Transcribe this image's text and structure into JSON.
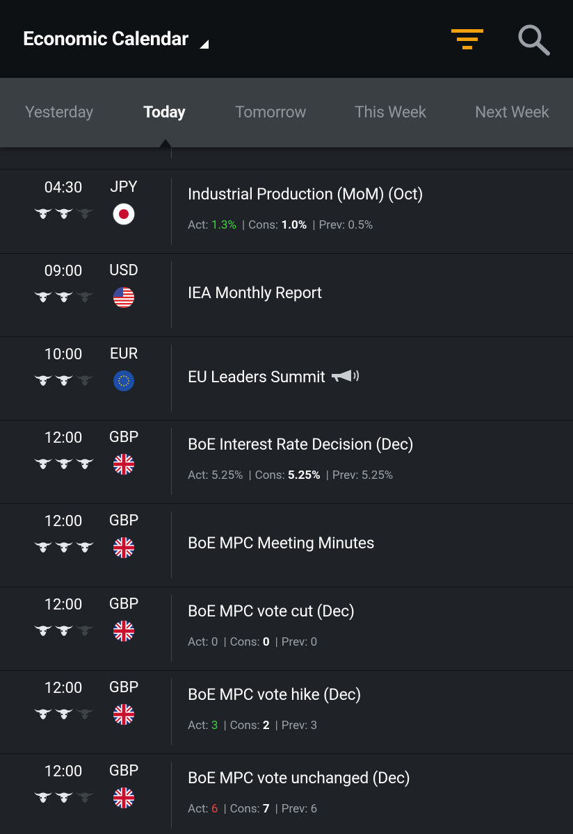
{
  "header": {
    "title": "Economic Calendar",
    "filter_icon": "filter-icon",
    "search_icon": "search-icon",
    "accent_color": "#f5a10d"
  },
  "tabs": [
    {
      "label": "Yesterday",
      "active": false
    },
    {
      "label": "Today",
      "active": true
    },
    {
      "label": "Tomorrow",
      "active": false
    },
    {
      "label": "This Week",
      "active": false
    },
    {
      "label": "Next Week",
      "active": false
    }
  ],
  "labels": {
    "act": "Act:",
    "cons": "Cons:",
    "prev": "Prev:"
  },
  "events": [
    {
      "time": "04:30",
      "currency": "JPY",
      "impact": 2,
      "flag": "japan-flag-icon",
      "name": "Industrial Production (MoM) (Oct)",
      "act": "1.3%",
      "act_color": "green",
      "cons": "1.0%",
      "prev": "0.5%"
    },
    {
      "time": "09:00",
      "currency": "USD",
      "impact": 2,
      "flag": "usa-flag-icon",
      "name": "IEA Monthly Report"
    },
    {
      "time": "10:00",
      "currency": "EUR",
      "impact": 2,
      "flag": "eu-flag-icon",
      "name": "EU Leaders Summit",
      "speech": true
    },
    {
      "time": "12:00",
      "currency": "GBP",
      "impact": 3,
      "flag": "uk-flag-icon",
      "name": "BoE Interest Rate Decision (Dec)",
      "act": "5.25%",
      "act_color": "grey",
      "cons": "5.25%",
      "prev": "5.25%"
    },
    {
      "time": "12:00",
      "currency": "GBP",
      "impact": 3,
      "flag": "uk-flag-icon",
      "name": "BoE MPC Meeting Minutes"
    },
    {
      "time": "12:00",
      "currency": "GBP",
      "impact": 2,
      "flag": "uk-flag-icon",
      "name": "BoE MPC vote cut (Dec)",
      "act": "0",
      "act_color": "grey",
      "cons": "0",
      "prev": "0"
    },
    {
      "time": "12:00",
      "currency": "GBP",
      "impact": 2,
      "flag": "uk-flag-icon",
      "name": "BoE MPC vote hike (Dec)",
      "act": "3",
      "act_color": "green",
      "cons": "2",
      "prev": "3"
    },
    {
      "time": "12:00",
      "currency": "GBP",
      "impact": 2,
      "flag": "uk-flag-icon",
      "name": "BoE MPC vote unchanged (Dec)",
      "act": "6",
      "act_color": "red",
      "cons": "7",
      "prev": "6"
    }
  ]
}
